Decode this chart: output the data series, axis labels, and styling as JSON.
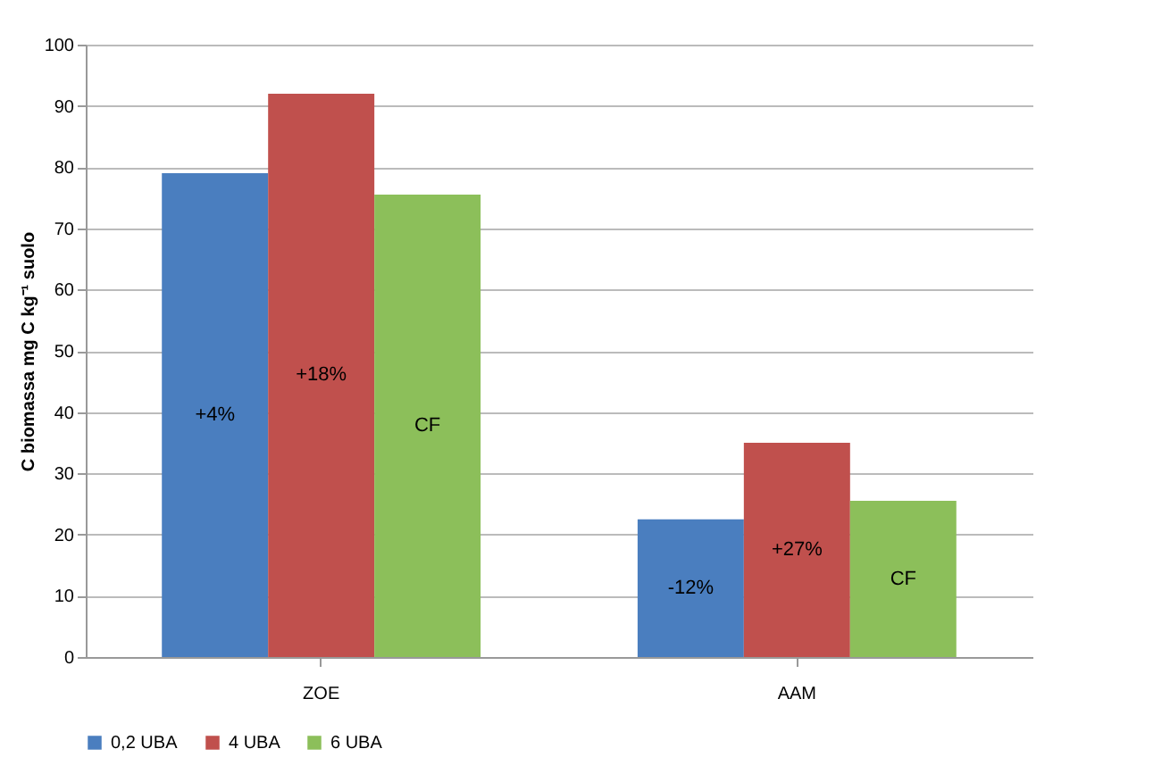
{
  "chart_data": {
    "type": "bar",
    "ylabel": "C biomassa mg C kg⁻¹ suolo",
    "categories": [
      "ZOE",
      "AAM"
    ],
    "series": [
      {
        "name": "0,2 UBA",
        "color": "#4a7ebf",
        "values": [
          79,
          22.5
        ]
      },
      {
        "name": "4 UBA",
        "color": "#c0504d",
        "values": [
          92,
          35
        ]
      },
      {
        "name": "6 UBA",
        "color": "#8cbf5a",
        "values": [
          75.5,
          25.5
        ]
      }
    ],
    "annotations": [
      "+4%",
      "+18%",
      "CF",
      "-12%",
      "+27%",
      "CF"
    ],
    "ylim": [
      0,
      100
    ],
    "yticks": [
      0,
      10,
      20,
      30,
      40,
      50,
      60,
      70,
      80,
      90,
      100
    ],
    "grid": "y",
    "legend": "bottom"
  }
}
